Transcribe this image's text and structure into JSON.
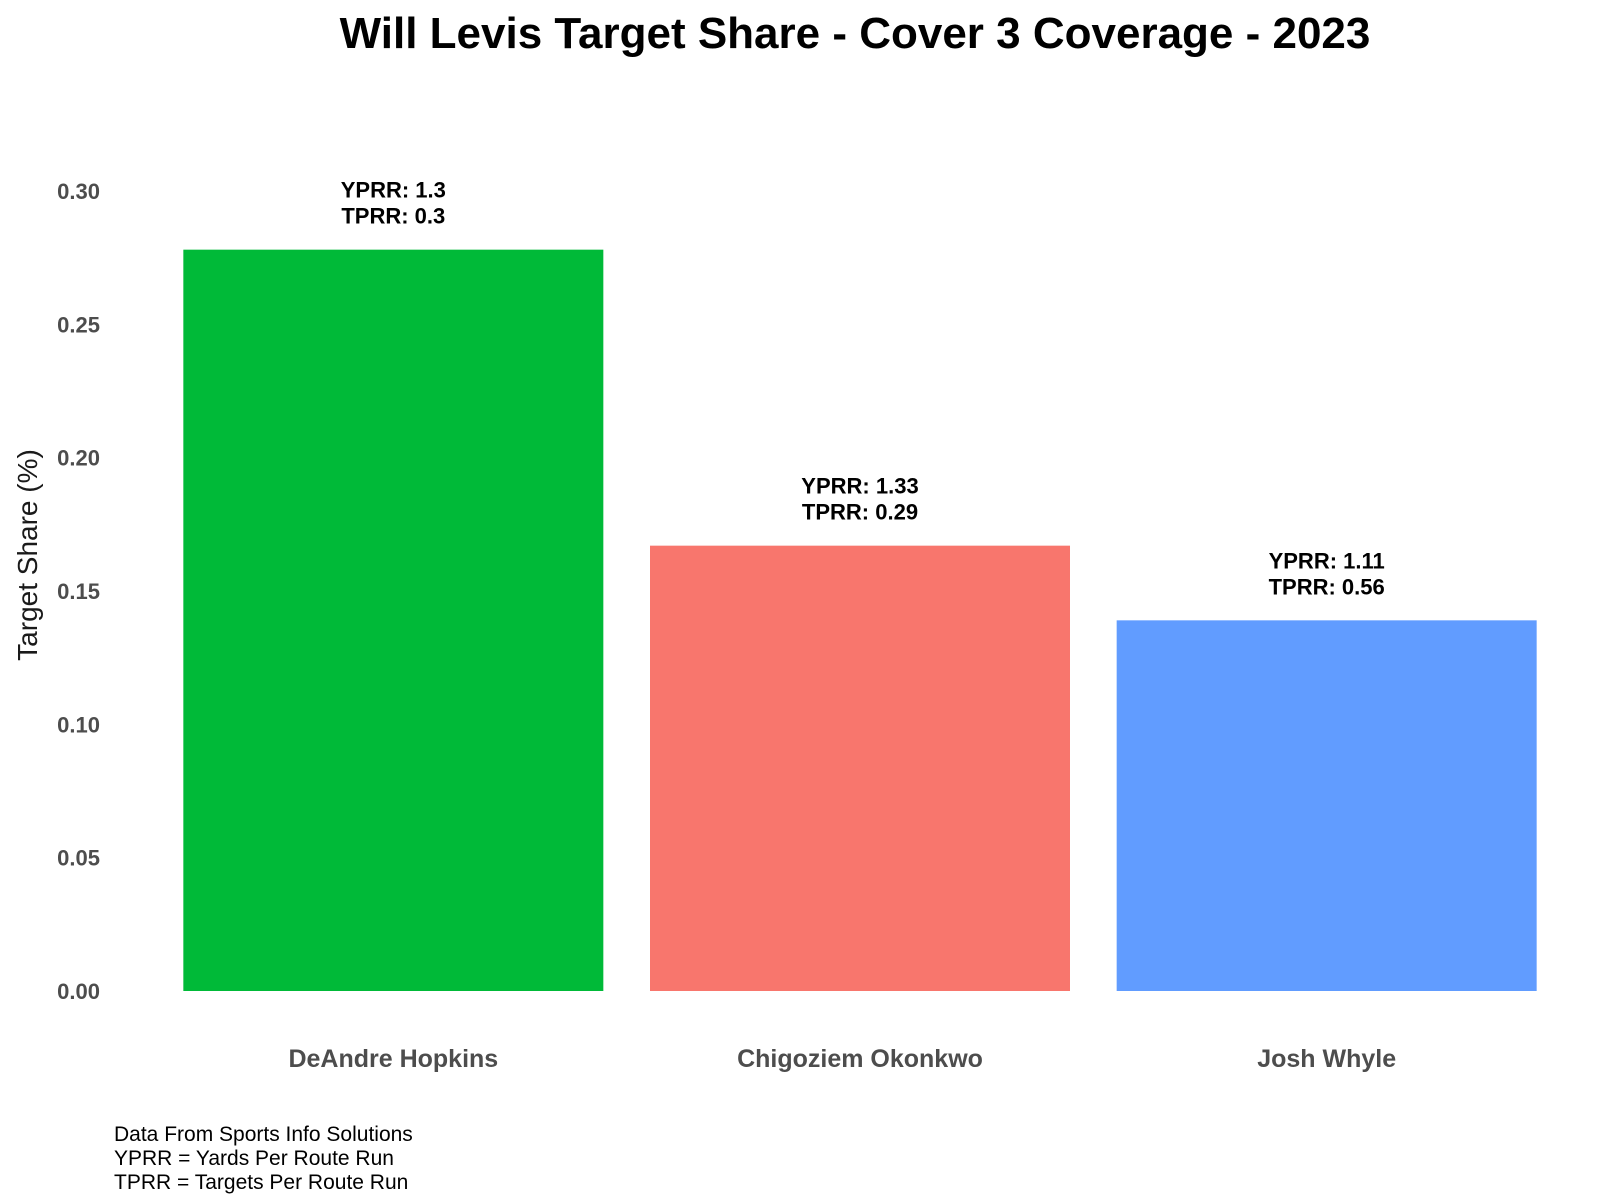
{
  "chart_data": {
    "type": "bar",
    "title": "Will Levis Target Share - Cover 3 Coverage - 2023",
    "xlabel": "",
    "ylabel": "Target Share (%)",
    "ylim": [
      0,
      0.3
    ],
    "yticks": [
      "0.00",
      "0.05",
      "0.10",
      "0.15",
      "0.20",
      "0.25",
      "0.30"
    ],
    "grid": false,
    "legend": "none",
    "categories": [
      "DeAndre Hopkins",
      "Chigoziem Okonkwo",
      "Josh Whyle"
    ],
    "values": [
      0.278,
      0.167,
      0.139
    ],
    "colors": [
      "#00BA38",
      "#F8766D",
      "#619CFF"
    ],
    "annotations": [
      [
        "YPRR: 1.3",
        "TPRR: 0.3"
      ],
      [
        "YPRR: 1.33",
        "TPRR: 0.29"
      ],
      [
        "YPRR: 1.11",
        "TPRR: 0.56"
      ]
    ]
  },
  "caption": {
    "lines": [
      "Data From Sports Info Solutions",
      "YPRR = Yards Per Route Run",
      "TPRR = Targets Per Route Run"
    ]
  }
}
